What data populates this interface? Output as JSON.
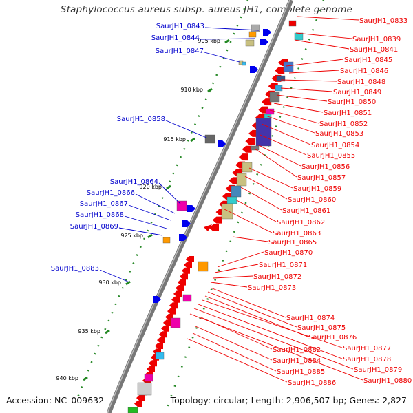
{
  "title": "Staphylococcus aureus subsp. aureus JH1, complete genome",
  "footer": {
    "accession": "Accession: NC_009632",
    "summary": "Topology: circular; Length: 2,906,507 bp; Genes: 2,827"
  },
  "colors": {
    "forward_label": "#0000cc",
    "reverse_label": "#ee0000",
    "backbone": "#777777",
    "tick": "#228822",
    "forward_gene": "#0000ee",
    "reverse_gene": "#ee0000"
  },
  "scale_ticks": [
    "905 kbp",
    "910 kbp",
    "915 kbp",
    "920 kbp",
    "925 kbp",
    "930 kbp",
    "935 kbp",
    "940 kbp"
  ],
  "forward_genes": [
    "SaurJH1_0843",
    "SaurJH1_0844",
    "SaurJH1_0847",
    "SaurJH1_0858",
    "SaurJH1_0864",
    "SaurJH1_0866",
    "SaurJH1_0867",
    "SaurJH1_0868",
    "SaurJH1_0869",
    "SaurJH1_0883"
  ],
  "reverse_genes": [
    "SaurJH1_0833",
    "SaurJH1_0839",
    "SaurJH1_0841",
    "SaurJH1_0845",
    "SaurJH1_0846",
    "SaurJH1_0848",
    "SaurJH1_0849",
    "SaurJH1_0850",
    "SaurJH1_0851",
    "SaurJH1_0852",
    "SaurJH1_0853",
    "SaurJH1_0854",
    "SaurJH1_0855",
    "SaurJH1_0856",
    "SaurJH1_0857",
    "SaurJH1_0859",
    "SaurJH1_0860",
    "SaurJH1_0861",
    "SaurJH1_0862",
    "SaurJH1_0863",
    "SaurJH1_0865",
    "SaurJH1_0870",
    "SaurJH1_0871",
    "SaurJH1_0872",
    "SaurJH1_0873",
    "SaurJH1_0874",
    "SaurJH1_0875",
    "SaurJH1_0876",
    "SaurJH1_0877",
    "SaurJH1_0878",
    "SaurJH1_0879",
    "SaurJH1_0880",
    "SaurJH1_0882",
    "SaurJH1_0884",
    "SaurJH1_0885",
    "SaurJH1_0886"
  ]
}
